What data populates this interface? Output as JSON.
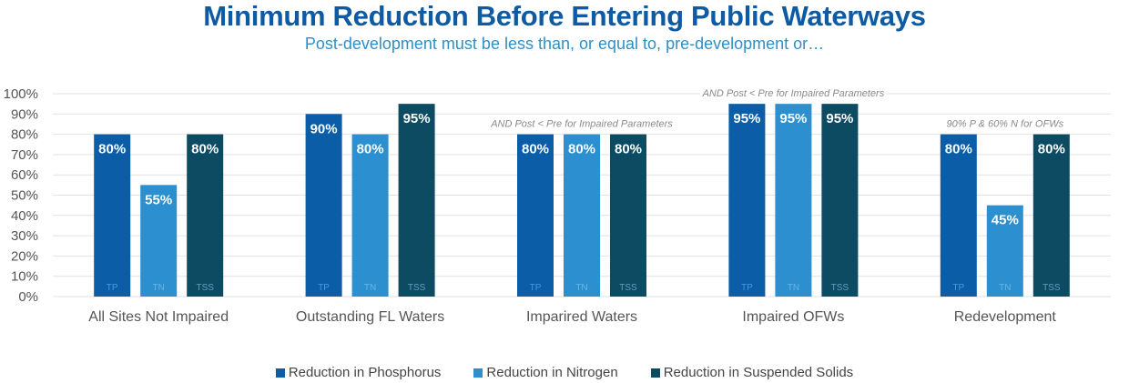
{
  "chart_data": {
    "type": "bar",
    "title": "Minimum Reduction Before Entering Public Waterways",
    "subtitle": "Post-development must be less than, or equal to, pre-development or…",
    "xlabel": "",
    "ylabel": "",
    "ylim": [
      0,
      100
    ],
    "y_ticks": [
      "0%",
      "10%",
      "20%",
      "30%",
      "40%",
      "50%",
      "60%",
      "70%",
      "80%",
      "90%",
      "100%"
    ],
    "grid": true,
    "legend_position": "bottom",
    "categories": [
      "All Sites Not Impaired",
      "Outstanding FL Waters",
      "Imparired Waters",
      "Impaired OFWs",
      "Redevelopment"
    ],
    "series": [
      {
        "name": "Reduction in Phosphorus",
        "short": "TP",
        "color": "#0A5DA6",
        "label_color": "#4A9ADB",
        "values": [
          80,
          90,
          80,
          95,
          80
        ]
      },
      {
        "name": "Reduction in Nitrogen",
        "short": "TN",
        "color": "#2B8FD0",
        "label_color": "#6CB4E2",
        "values": [
          55,
          80,
          80,
          95,
          45
        ]
      },
      {
        "name": "Reduction in Suspended Solids",
        "short": "TSS",
        "color": "#0D4B63",
        "label_color": "#5FA0C0",
        "values": [
          80,
          95,
          80,
          95,
          80
        ]
      }
    ],
    "data_labels": [
      [
        "80%",
        "90%",
        "80%",
        "95%",
        "80%"
      ],
      [
        "55%",
        "80%",
        "80%",
        "95%",
        "45%"
      ],
      [
        "80%",
        "95%",
        "80%",
        "95%",
        "80%"
      ]
    ],
    "annotations": [
      {
        "category_index": 2,
        "text": "AND Post < Pre for Impaired Parameters"
      },
      {
        "category_index": 3,
        "text": "AND Post < Pre for Impaired Parameters"
      },
      {
        "category_index": 4,
        "text": "90% P & 60% N for OFWs"
      }
    ]
  }
}
